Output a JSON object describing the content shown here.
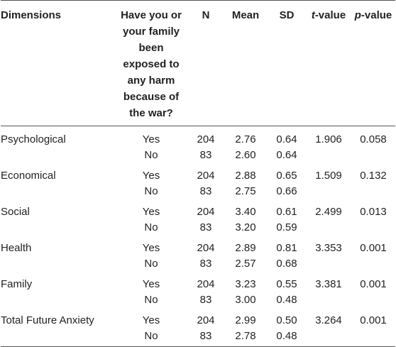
{
  "header": {
    "dimensions": "Dimensions",
    "harm": "Have you or your family been exposed to any harm because of the war?",
    "n": "N",
    "mean": "Mean",
    "sd": "SD",
    "t_italic": "t",
    "t_rest": "-value",
    "p_italic": "p",
    "p_rest": "-value"
  },
  "rows": [
    {
      "dimension": "Psychological",
      "yes": {
        "label": "Yes",
        "n": "204",
        "mean": "2.76",
        "sd": "0.64"
      },
      "no": {
        "label": "No",
        "n": "83",
        "mean": "2.60",
        "sd": "0.64"
      },
      "t": "1.906",
      "p": "0.058"
    },
    {
      "dimension": "Economical",
      "yes": {
        "label": "Yes",
        "n": "204",
        "mean": "2.88",
        "sd": "0.65"
      },
      "no": {
        "label": "No",
        "n": "83",
        "mean": "2.75",
        "sd": "0.66"
      },
      "t": "1.509",
      "p": "0.132"
    },
    {
      "dimension": "Social",
      "yes": {
        "label": "Yes",
        "n": "204",
        "mean": "3.40",
        "sd": "0.61"
      },
      "no": {
        "label": "No",
        "n": "83",
        "mean": "3.20",
        "sd": "0.59"
      },
      "t": "2.499",
      "p": "0.013"
    },
    {
      "dimension": "Health",
      "yes": {
        "label": "Yes",
        "n": "204",
        "mean": "2.89",
        "sd": "0.81"
      },
      "no": {
        "label": "No",
        "n": "83",
        "mean": "2.57",
        "sd": "0.68"
      },
      "t": "3.353",
      "p": "0.001"
    },
    {
      "dimension": "Family",
      "yes": {
        "label": "Yes",
        "n": "204",
        "mean": "3.23",
        "sd": "0.55"
      },
      "no": {
        "label": "No",
        "n": "83",
        "mean": "3.00",
        "sd": "0.48"
      },
      "t": "3.381",
      "p": "0.001"
    },
    {
      "dimension": "Total Future Anxiety",
      "yes": {
        "label": "Yes",
        "n": "204",
        "mean": "2.99",
        "sd": "0.50"
      },
      "no": {
        "label": "No",
        "n": "83",
        "mean": "2.78",
        "sd": "0.48"
      },
      "t": "3.264",
      "p": "0.001"
    }
  ]
}
